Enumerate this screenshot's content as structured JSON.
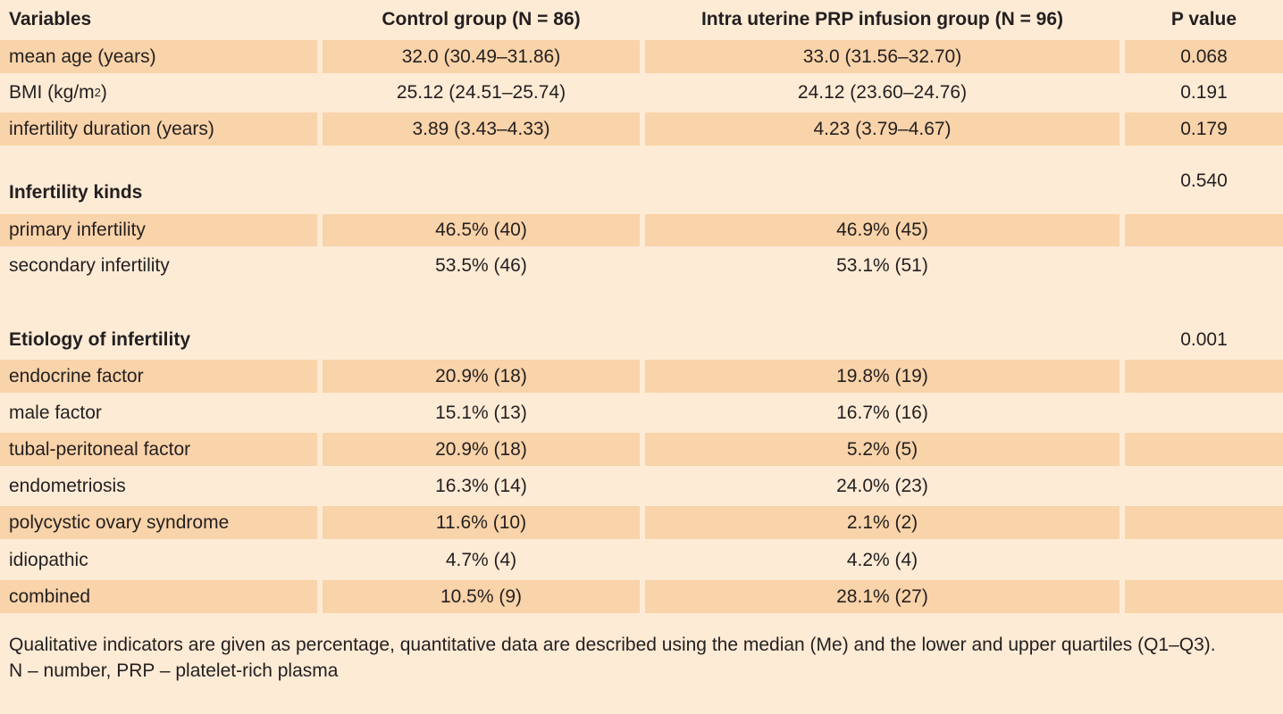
{
  "header": {
    "variables": "Variables",
    "control": "Control group (N = 86)",
    "prp": "Intra uterine PRP infusion group (N = 96)",
    "pvalue": "P value"
  },
  "rows": [
    {
      "label": "mean age (years)",
      "control": "32.0 (30.49–31.86)",
      "prp": "33.0 (31.56–32.70)",
      "p": "0.068"
    },
    {
      "label_pre": "BMI (kg/m",
      "label_sup": "2",
      "label_post": ")",
      "control": "25.12 (24.51–25.74)",
      "prp": "24.12 (23.60–24.76)",
      "p": "0.191"
    },
    {
      "label": "infertility duration (years)",
      "control": "3.89 (3.43–4.33)",
      "prp": "4.23 (3.79–4.67)",
      "p": "0.179"
    }
  ],
  "kinds": {
    "title": "Infertility kinds",
    "p": "0.540",
    "rows": [
      {
        "label": "primary infertility",
        "control": "46.5% (40)",
        "prp": "46.9% (45)"
      },
      {
        "label": "secondary infertility",
        "control": "53.5% (46)",
        "prp": "53.1% (51)"
      }
    ]
  },
  "etiology": {
    "title": "Etiology of infertility",
    "p": "0.001",
    "rows": [
      {
        "label": "endocrine factor",
        "control": "20.9% (18)",
        "prp": "19.8% (19)"
      },
      {
        "label": "male factor",
        "control": "15.1% (13)",
        "prp": "16.7% (16)"
      },
      {
        "label": "tubal-peritoneal factor",
        "control": "20.9% (18)",
        "prp": "5.2% (5)"
      },
      {
        "label": "endometriosis",
        "control": "16.3% (14)",
        "prp": "24.0% (23)"
      },
      {
        "label": "polycystic ovary syndrome",
        "control": "11.6% (10)",
        "prp": "2.1% (2)"
      },
      {
        "label": "idiopathic",
        "control": "4.7% (4)",
        "prp": "4.2% (4)"
      },
      {
        "label": "combined",
        "control": "10.5% (9)",
        "prp": "28.1% (27)"
      }
    ]
  },
  "footnotes": {
    "line1": "Qualitative indicators are given as percentage, quantitative data are described using the median (Me) and the lower and upper quartiles (Q1–Q3).",
    "line2": "N – number, PRP – platelet-rich plasma"
  },
  "colors": {
    "background": "#fdebd5",
    "shade": "#f9d3a9",
    "text": "#231f20"
  }
}
